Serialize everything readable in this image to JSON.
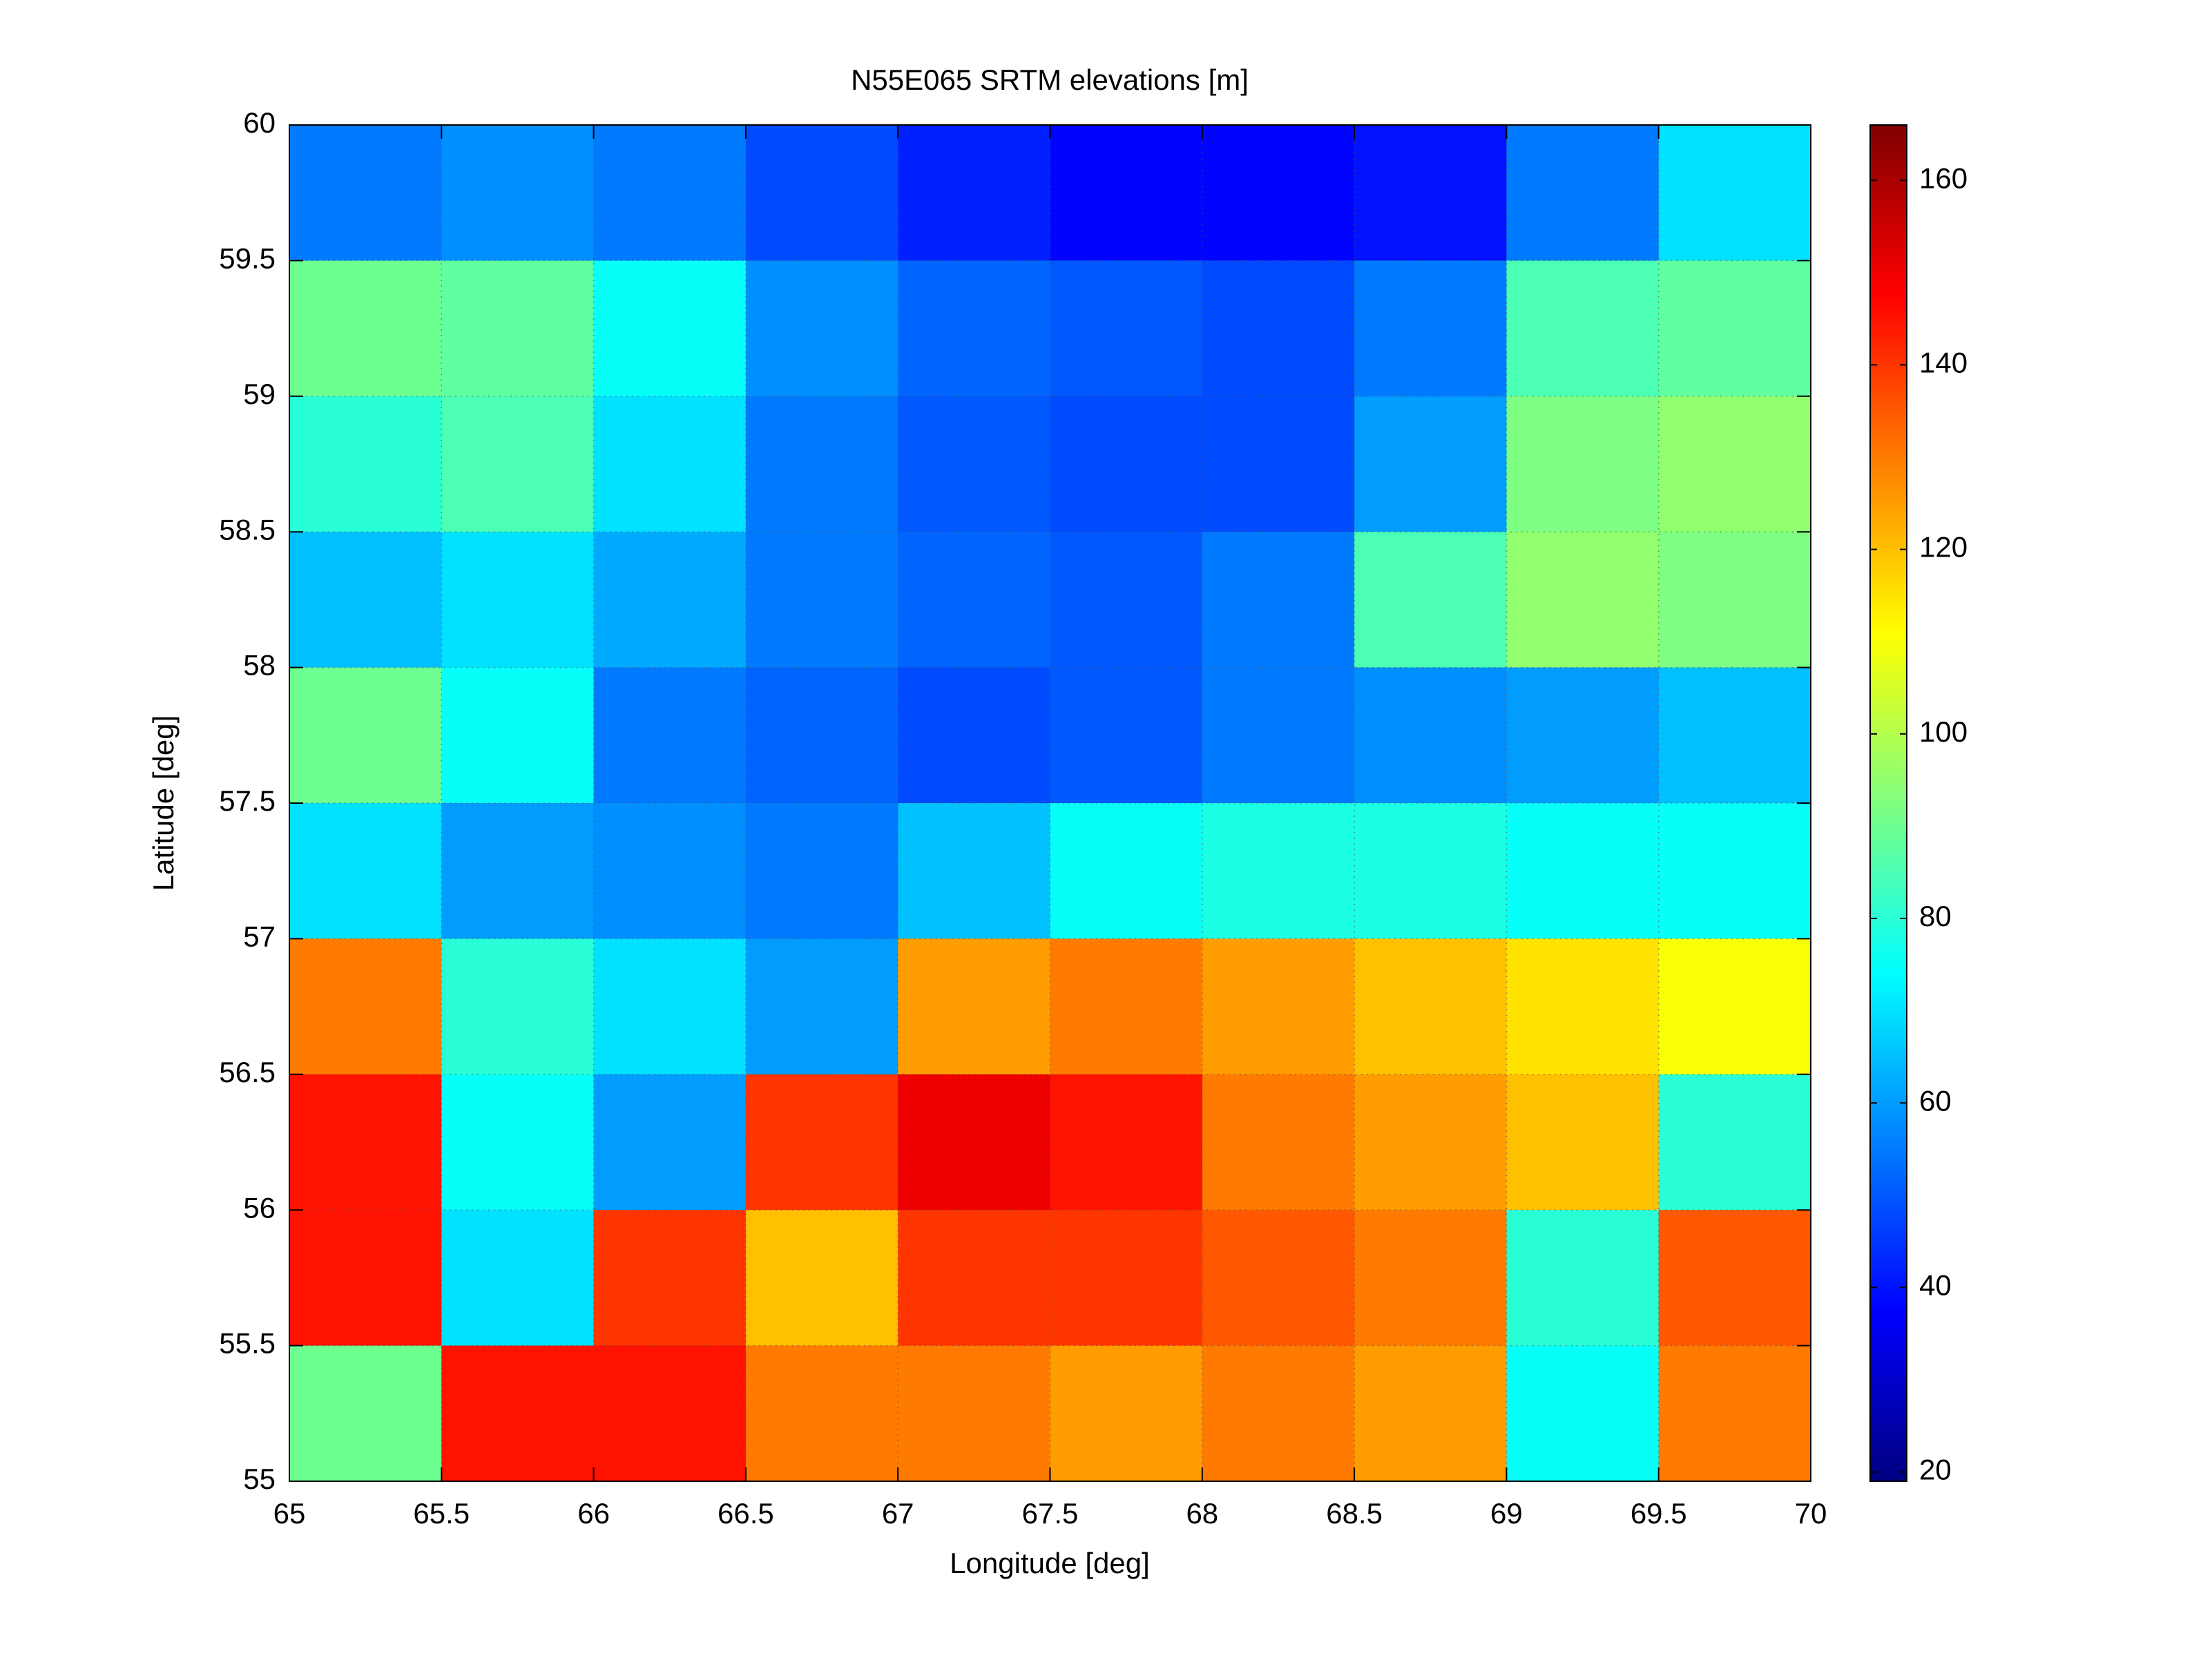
{
  "chart_data": {
    "type": "heatmap",
    "title": "N55E065 SRTM elevations [m]",
    "x_label": "Longitude [deg]",
    "y_label": "Latitude [deg]",
    "x": [
      65.25,
      65.75,
      66.25,
      66.75,
      67.25,
      67.75,
      68.25,
      68.75,
      69.25,
      69.75
    ],
    "y": [
      59.75,
      59.25,
      58.75,
      58.25,
      57.75,
      57.25,
      56.75,
      56.25,
      55.75,
      55.25
    ],
    "z": [
      [
        55,
        58,
        55,
        48,
        42,
        38,
        38,
        40,
        55,
        70
      ],
      [
        90,
        88,
        75,
        58,
        52,
        50,
        48,
        55,
        85,
        88
      ],
      [
        80,
        85,
        70,
        55,
        50,
        48,
        48,
        60,
        92,
        95
      ],
      [
        65,
        70,
        62,
        55,
        52,
        50,
        55,
        85,
        95,
        92
      ],
      [
        90,
        75,
        55,
        52,
        48,
        50,
        55,
        58,
        60,
        65
      ],
      [
        70,
        60,
        58,
        55,
        65,
        75,
        78,
        78,
        75,
        75
      ],
      [
        130,
        80,
        70,
        60,
        125,
        130,
        125,
        120,
        115,
        110
      ],
      [
        145,
        75,
        60,
        140,
        150,
        145,
        130,
        125,
        120,
        80
      ],
      [
        145,
        70,
        140,
        120,
        140,
        140,
        135,
        130,
        80,
        135
      ],
      [
        90,
        145,
        145,
        130,
        130,
        125,
        130,
        125,
        75,
        130
      ]
    ],
    "xlim": [
      65,
      70
    ],
    "ylim": [
      55,
      60
    ],
    "xticks": [
      65,
      65.5,
      66,
      66.5,
      67,
      67.5,
      68,
      68.5,
      69,
      69.5,
      70
    ],
    "yticks": [
      55,
      55.5,
      56,
      56.5,
      57,
      57.5,
      58,
      58.5,
      59,
      59.5,
      60
    ],
    "grid": true,
    "colormap": "jet",
    "clim": [
      19,
      166
    ],
    "cticks": [
      20,
      40,
      60,
      80,
      100,
      120,
      140,
      160
    ]
  }
}
